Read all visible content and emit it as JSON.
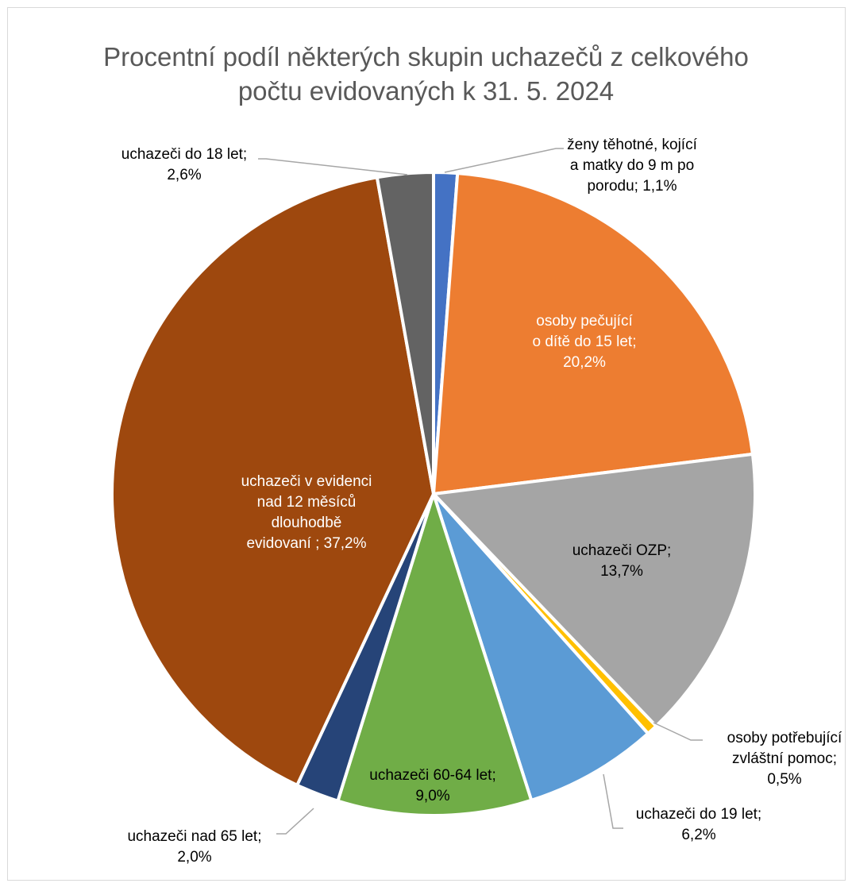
{
  "chart_data": {
    "type": "pie",
    "title_line1": "Procentní podíl některých skupin uchazečů z celkového",
    "title_line2": "počtu evidovaných k 31. 5. 2024",
    "slices": [
      {
        "label_lines": [
          "ženy těhotné, kojící",
          "a matky do 9 m po",
          "porodu; 1,1%"
        ],
        "value": 1.1,
        "color": "#4472c4"
      },
      {
        "label_lines": [
          "osoby pečující",
          "o dítě do 15 let;",
          "20,2%"
        ],
        "value": 20.2,
        "color": "#ed7d31"
      },
      {
        "label_lines": [
          "uchazeči OZP;",
          "13,7%"
        ],
        "value": 13.7,
        "color": "#a5a5a5"
      },
      {
        "label_lines": [
          "osoby potřebující",
          "zvláštní pomoc;",
          "0,5%"
        ],
        "value": 0.5,
        "color": "#ffc000"
      },
      {
        "label_lines": [
          "uchazeči do 19 let;",
          "6,2%"
        ],
        "value": 6.2,
        "color": "#5b9bd5"
      },
      {
        "label_lines": [
          "uchazeči  60-64 let;",
          "9,0%"
        ],
        "value": 9.0,
        "color": "#70ad47"
      },
      {
        "label_lines": [
          "uchazeči nad 65 let;",
          "2,0%"
        ],
        "value": 2.0,
        "color": "#264478"
      },
      {
        "label_lines": [
          "uchazeči v evidenci",
          "nad 12 měsíců",
          "dlouhodbě",
          "evidovaní ; 37,2%"
        ],
        "value": 37.2,
        "color": "#9e480e"
      },
      {
        "label_lines": [
          "uchazeči do 18 let;",
          "2,6%"
        ],
        "value": 2.6,
        "color": "#636363"
      }
    ]
  }
}
